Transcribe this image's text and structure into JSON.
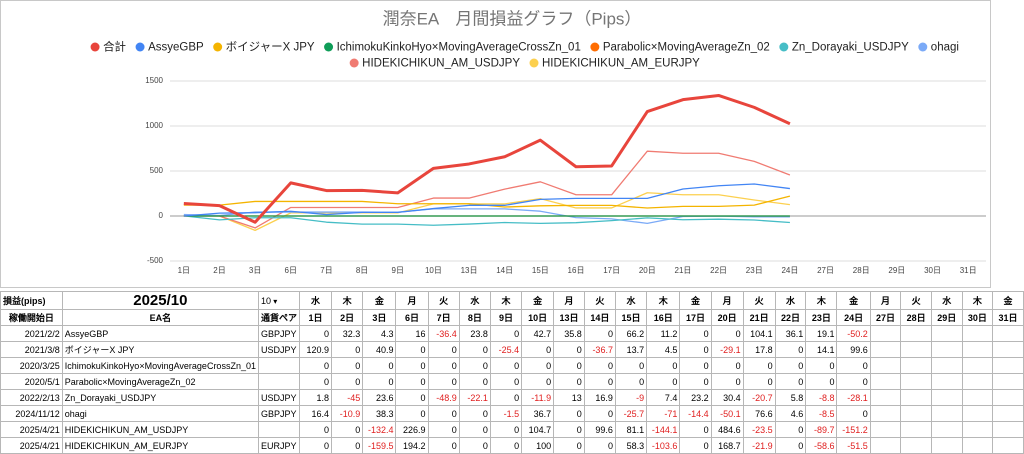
{
  "chart_data": {
    "type": "line",
    "title": "潤奈EA　月間損益グラフ（Pips）",
    "categories": [
      "1日",
      "2日",
      "3日",
      "6日",
      "7日",
      "8日",
      "9日",
      "10日",
      "13日",
      "14日",
      "15日",
      "16日",
      "17日",
      "20日",
      "21日",
      "22日",
      "23日",
      "24日",
      "27日",
      "28日",
      "29日",
      "30日",
      "31日"
    ],
    "ylim": [
      -500,
      1500
    ],
    "yticks": [
      -500,
      0,
      500,
      1000,
      1500
    ],
    "grid": true,
    "series": [
      {
        "name": "合計",
        "color": "#e8453c",
        "values": [
          139.1,
          115.5,
          -69.3,
          367.8,
          282.5,
          284.2,
          257.3,
          529.5,
          578.3,
          658.1,
          842.7,
          547.1,
          555.9,
          1160.4,
          1292.8,
          1339.3,
          1206.9,
          1025.5,
          null,
          null,
          null,
          null,
          null
        ]
      },
      {
        "name": "AssyeGBP",
        "color": "#4285f4",
        "values": [
          0,
          32.3,
          36.6,
          52.6,
          16.2,
          40,
          40,
          82.7,
          118.5,
          118.5,
          184.7,
          195.9,
          195.9,
          195.9,
          300,
          336.1,
          355.2,
          305,
          null,
          null,
          null,
          null,
          null
        ]
      },
      {
        "name": "ボイジャーX JPY",
        "color": "#f4b400",
        "values": [
          120.9,
          120.9,
          161.8,
          161.8,
          161.8,
          161.8,
          136.4,
          136.4,
          136.4,
          99.7,
          113.4,
          117.9,
          117.9,
          88.8,
          106.6,
          106.6,
          120.7,
          220.3,
          null,
          null,
          null,
          null,
          null
        ]
      },
      {
        "name": "IchimokuKinkoHyo×MovingAverageCrossZn_01",
        "color": "#0f9d58",
        "values": [
          0,
          0,
          0,
          0,
          0,
          0,
          0,
          0,
          0,
          0,
          0,
          0,
          0,
          0,
          0,
          0,
          0,
          0,
          null,
          null,
          null,
          null,
          null
        ]
      },
      {
        "name": "Parabolic×MovingAverageZn_02",
        "color": "#ff6d01",
        "values": [
          0,
          0,
          0,
          0,
          0,
          0,
          0,
          0,
          0,
          0,
          0,
          0,
          0,
          0,
          0,
          0,
          0,
          0,
          null,
          null,
          null,
          null,
          null
        ]
      },
      {
        "name": "Zn_Dorayaki_USDJPY",
        "color": "#46bdc6",
        "values": [
          1.8,
          -43.2,
          -19.6,
          -19.6,
          -68.5,
          -90.6,
          -90.6,
          -102.5,
          -89.5,
          -72.6,
          -81.6,
          -74.2,
          -51,
          -20.6,
          -41.3,
          -35.5,
          -44.3,
          -72.4,
          null,
          null,
          null,
          null,
          null
        ]
      },
      {
        "name": "ohagi",
        "color": "#7baaf7",
        "values": [
          16.4,
          5.5,
          43.8,
          43.8,
          43.8,
          43.8,
          42.3,
          79,
          79,
          79,
          53.3,
          -17.7,
          -32.1,
          -82.2,
          -5.6,
          -1,
          -9.5,
          -9.5,
          null,
          null,
          null,
          null,
          null
        ]
      },
      {
        "name": "HIDEKICHIKUN_AM_USDJPY",
        "color": "#f07b72",
        "values": [
          0,
          0,
          -132.4,
          94.5,
          94.5,
          94.5,
          94.5,
          199.2,
          199.2,
          298.8,
          379.9,
          235.8,
          235.8,
          720.4,
          696.9,
          696.9,
          607.2,
          456,
          null,
          null,
          null,
          null,
          null
        ]
      },
      {
        "name": "HIDEKICHIKUN_AM_EURJPY",
        "color": "#fcd04f",
        "values": [
          0,
          0,
          -159.5,
          34.7,
          34.7,
          34.7,
          34.7,
          134.7,
          134.7,
          134.7,
          193,
          89.4,
          89.4,
          258.1,
          236.2,
          236.2,
          177.6,
          126.1,
          null,
          null,
          null,
          null,
          null
        ]
      }
    ]
  },
  "table": {
    "header": {
      "label": "損益(pips)",
      "month": "2025/10",
      "select": "10",
      "weekdays": [
        "水",
        "木",
        "金",
        "月",
        "火",
        "水",
        "木",
        "金",
        "月",
        "火",
        "水",
        "木",
        "金",
        "月",
        "火",
        "水",
        "木",
        "金",
        "月",
        "火",
        "水",
        "木",
        "金"
      ]
    },
    "columns": [
      "稼働開始日",
      "EA名",
      "通貨ペア"
    ],
    "rows": [
      {
        "start": "2021/2/2",
        "name": "AssyeGBP",
        "pair": "GBPJPY",
        "values": [
          0,
          32.3,
          4.3,
          16,
          -36.4,
          23.8,
          0,
          42.7,
          35.8,
          0,
          66.2,
          11.2,
          0,
          0,
          104.1,
          36.1,
          19.1,
          -50.2
        ]
      },
      {
        "start": "2021/3/8",
        "name": "ボイジャーX JPY",
        "pair": "USDJPY",
        "values": [
          120.9,
          0,
          40.9,
          0,
          0,
          0,
          -25.4,
          0,
          0,
          -36.7,
          13.7,
          4.5,
          0,
          -29.1,
          17.8,
          0,
          14.1,
          99.6
        ]
      },
      {
        "start": "2020/3/25",
        "name": "IchimokuKinkoHyo×MovingAverageCrossZn_01",
        "pair": null,
        "values": [
          0,
          0,
          0,
          0,
          0,
          0,
          0,
          0,
          0,
          0,
          0,
          0,
          0,
          0,
          0,
          0,
          0,
          0
        ]
      },
      {
        "start": "2020/5/1",
        "name": "Parabolic×MovingAverageZn_02",
        "pair": null,
        "values": [
          0,
          0,
          0,
          0,
          0,
          0,
          0,
          0,
          0,
          0,
          0,
          0,
          0,
          0,
          0,
          0,
          0,
          0
        ]
      },
      {
        "start": "2022/2/13",
        "name": "Zn_Dorayaki_USDJPY",
        "pair": "USDJPY",
        "values": [
          1.8,
          -45,
          23.6,
          0,
          -48.9,
          -22.1,
          0,
          -11.9,
          13,
          16.9,
          -9,
          7.4,
          23.2,
          30.4,
          -20.7,
          5.8,
          -8.8,
          -28.1
        ]
      },
      {
        "start": "2024/11/12",
        "name": "ohagi",
        "pair": "GBPJPY",
        "values": [
          16.4,
          -10.9,
          38.3,
          0,
          0,
          0,
          -1.5,
          36.7,
          0,
          0,
          -25.7,
          -71,
          -14.4,
          -50.1,
          76.6,
          4.6,
          -8.5,
          0
        ]
      },
      {
        "start": "2025/4/21",
        "name": "HIDEKICHIKUN_AM_USDJPY",
        "pair": null,
        "values": [
          0,
          0,
          -132.4,
          226.9,
          0,
          0,
          0,
          104.7,
          0,
          99.6,
          81.1,
          -144.1,
          0,
          484.6,
          -23.5,
          0,
          -89.7,
          -151.2
        ]
      },
      {
        "start": "2025/4/21",
        "name": "HIDEKICHIKUN_AM_EURJPY",
        "pair": "EURJPY",
        "values": [
          0,
          0,
          -159.5,
          194.2,
          0,
          0,
          0,
          100,
          0,
          0,
          58.3,
          -103.6,
          0,
          168.7,
          -21.9,
          0,
          -58.6,
          -51.5
        ]
      }
    ]
  }
}
